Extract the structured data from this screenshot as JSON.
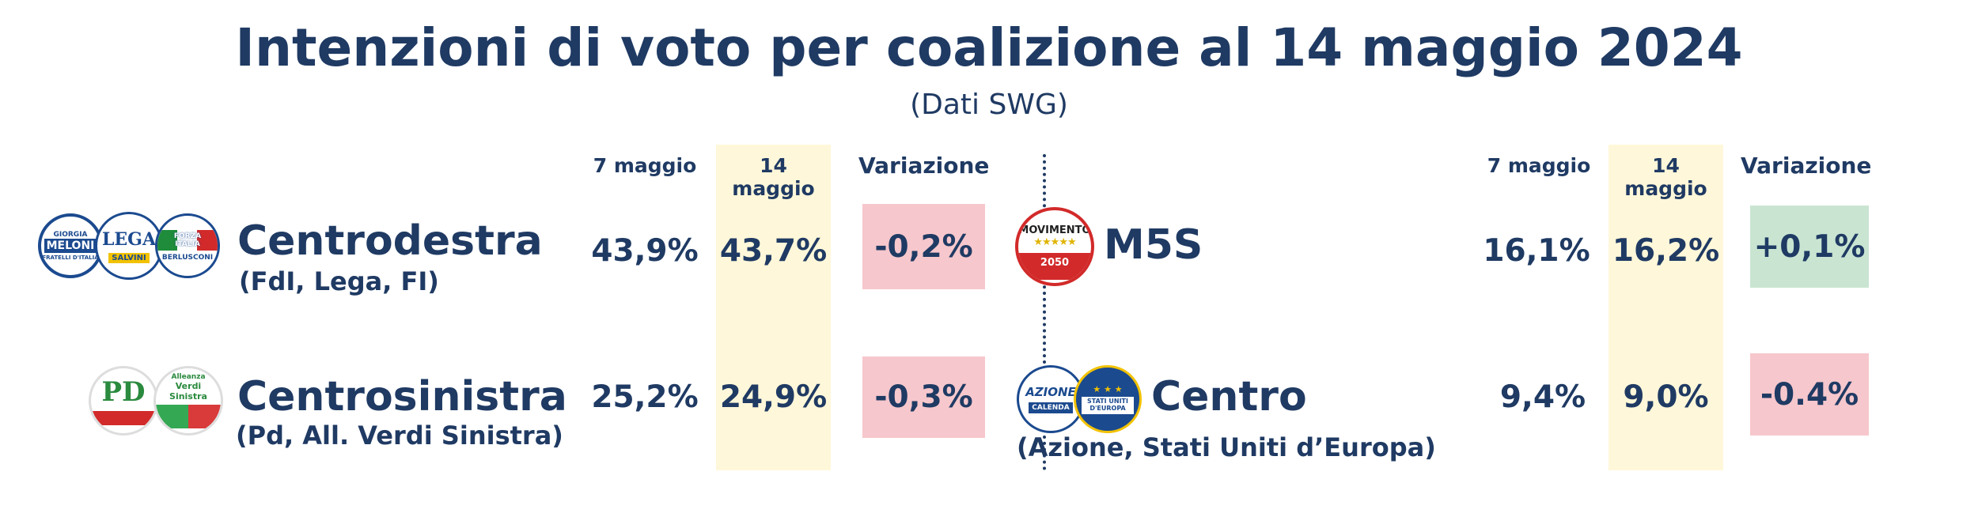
{
  "title": "Intenzioni di voto per coalizione al 14 maggio 2024",
  "subtitle": "(Dati SWG)",
  "left_headers": {
    "prev": "7 maggio",
    "curr": "14 maggio",
    "change": "Variazione"
  },
  "right_headers": {
    "prev": "7  maggio",
    "curr": "14 maggio",
    "change": "Variazione"
  },
  "colors": {
    "text": "#1f3a63",
    "highlight": "#fff7d9",
    "negative": "#f6c7cc",
    "positive": "#c9e5d2"
  },
  "rows": {
    "centrodestra": {
      "name": "Centrodestra",
      "members": "(FdI, Lega, FI)",
      "prev": "43,9%",
      "curr": "43,7%",
      "change": "-0,2%",
      "logos": {
        "fdi_top": "GIORGIA",
        "fdi_main": "MELONI",
        "fdi_bottom": "FRATELLI D'ITALIA",
        "lega_main": "LEGA",
        "lega_bottom": "SALVINI",
        "fi_main": "FORZA ITALIA",
        "fi_bottom": "BERLUSCONI"
      }
    },
    "centrosinistra": {
      "name": "Centrosinistra",
      "members": "(Pd, All. Verdi Sinistra)",
      "prev": "25,2%",
      "curr": "24,9%",
      "change": "-0,3%",
      "logos": {
        "pd_main": "PD",
        "avs_top": "Alleanza",
        "avs_main": "Verdi Sinistra"
      }
    },
    "m5s": {
      "name": "M5S",
      "members": "",
      "prev": "16,1%",
      "curr": "16,2%",
      "change": "+0,1%",
      "logos": {
        "m5s_main": "MOVIMENTO",
        "m5s_bottom": "2050"
      }
    },
    "centro": {
      "name": "Centro",
      "members": "(Azione, Stati Uniti d’Europa)",
      "prev": "9,4%",
      "curr": "9,0%",
      "change": "-0.4%",
      "logos": {
        "azione_main": "AZIONE",
        "azione_bottom": "CALENDA",
        "sue_main": "STATI UNITI D'EUROPA"
      }
    }
  }
}
